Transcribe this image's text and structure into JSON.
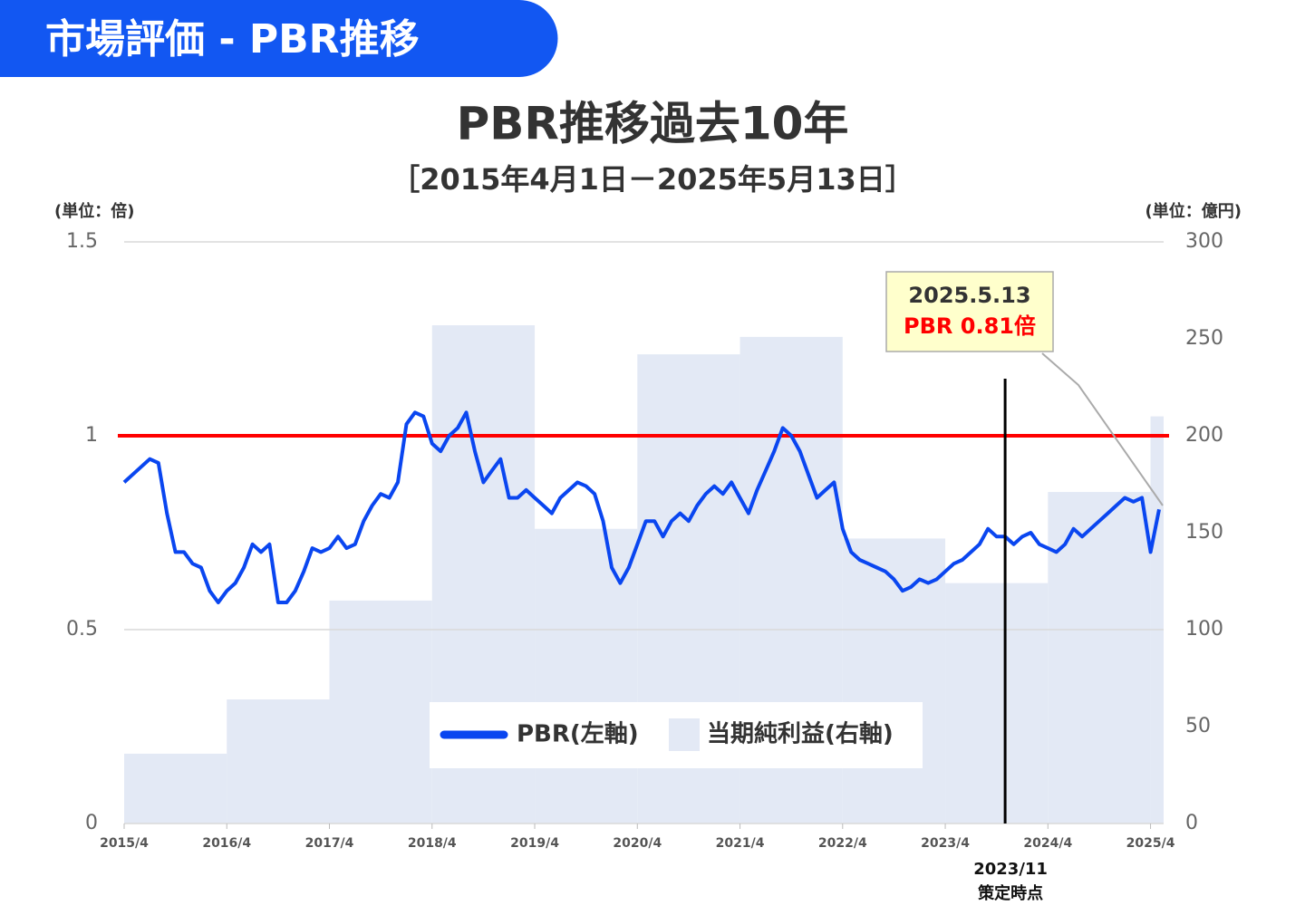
{
  "header": {
    "title": "市場評価 - PBR推移"
  },
  "chart_data": {
    "type": "line",
    "title": "PBR推移過去10年",
    "subtitle": "［2015年4月1日－2025年5月13日］",
    "y_label": "(単位：倍)",
    "y2_label": "(単位：億円)",
    "xlim": [
      "2015/4",
      "2025/5"
    ],
    "xticks": [
      "2015/4",
      "2016/4",
      "2017/4",
      "2018/4",
      "2019/4",
      "2020/4",
      "2021/4",
      "2022/4",
      "2023/4",
      "2024/4",
      "2025/4"
    ],
    "ylim": [
      0,
      1.5
    ],
    "yticks": [
      0,
      0.5,
      1,
      1.5
    ],
    "y2lim": [
      0,
      300
    ],
    "y2ticks": [
      0,
      50,
      100,
      150,
      200,
      250,
      300
    ],
    "grid": true,
    "x": [
      "2015/4",
      "2015/5",
      "2015/6",
      "2015/7",
      "2015/8",
      "2015/9",
      "2015/10",
      "2015/11",
      "2015/12",
      "2016/1",
      "2016/2",
      "2016/3",
      "2016/4",
      "2016/5",
      "2016/6",
      "2016/7",
      "2016/8",
      "2016/9",
      "2016/10",
      "2016/11",
      "2016/12",
      "2017/1",
      "2017/2",
      "2017/3",
      "2017/4",
      "2017/5",
      "2017/6",
      "2017/7",
      "2017/8",
      "2017/9",
      "2017/10",
      "2017/11",
      "2017/12",
      "2018/1",
      "2018/2",
      "2018/3",
      "2018/4",
      "2018/5",
      "2018/6",
      "2018/7",
      "2018/8",
      "2018/9",
      "2018/10",
      "2018/11",
      "2018/12",
      "2019/1",
      "2019/2",
      "2019/3",
      "2019/4",
      "2019/5",
      "2019/6",
      "2019/7",
      "2019/8",
      "2019/9",
      "2019/10",
      "2019/11",
      "2019/12",
      "2020/1",
      "2020/2",
      "2020/3",
      "2020/4",
      "2020/5",
      "2020/6",
      "2020/7",
      "2020/8",
      "2020/9",
      "2020/10",
      "2020/11",
      "2020/12",
      "2021/1",
      "2021/2",
      "2021/3",
      "2021/4",
      "2021/5",
      "2021/6",
      "2021/7",
      "2021/8",
      "2021/9",
      "2021/10",
      "2021/11",
      "2021/12",
      "2022/1",
      "2022/2",
      "2022/3",
      "2022/4",
      "2022/5",
      "2022/6",
      "2022/7",
      "2022/8",
      "2022/9",
      "2022/10",
      "2022/11",
      "2022/12",
      "2023/1",
      "2023/2",
      "2023/3",
      "2023/4",
      "2023/5",
      "2023/6",
      "2023/7",
      "2023/8",
      "2023/9",
      "2023/10",
      "2023/11",
      "2023/12",
      "2024/1",
      "2024/2",
      "2024/3",
      "2024/4",
      "2024/5",
      "2024/6",
      "2024/7",
      "2024/8",
      "2024/9",
      "2024/10",
      "2024/11",
      "2024/12",
      "2025/1",
      "2025/2",
      "2025/3",
      "2025/4",
      "2025/5"
    ],
    "series": [
      {
        "name": "PBR(左軸)",
        "color": "#0a46f0",
        "values": [
          0.88,
          0.9,
          0.92,
          0.94,
          0.93,
          0.8,
          0.7,
          0.7,
          0.67,
          0.66,
          0.6,
          0.57,
          0.6,
          0.62,
          0.66,
          0.72,
          0.7,
          0.72,
          0.57,
          0.57,
          0.6,
          0.65,
          0.71,
          0.7,
          0.71,
          0.74,
          0.71,
          0.72,
          0.78,
          0.82,
          0.85,
          0.84,
          0.88,
          1.03,
          1.06,
          1.05,
          0.98,
          0.96,
          1.0,
          1.02,
          1.06,
          0.96,
          0.88,
          0.91,
          0.94,
          0.84,
          0.84,
          0.86,
          0.84,
          0.82,
          0.8,
          0.84,
          0.86,
          0.88,
          0.87,
          0.85,
          0.78,
          0.66,
          0.62,
          0.66,
          0.72,
          0.78,
          0.78,
          0.74,
          0.78,
          0.8,
          0.78,
          0.82,
          0.85,
          0.87,
          0.85,
          0.88,
          0.84,
          0.8,
          0.86,
          0.91,
          0.96,
          1.02,
          1.0,
          0.96,
          0.9,
          0.84,
          0.86,
          0.88,
          0.76,
          0.7,
          0.68,
          0.67,
          0.66,
          0.65,
          0.63,
          0.6,
          0.61,
          0.63,
          0.62,
          0.63,
          0.65,
          0.67,
          0.68,
          0.7,
          0.72,
          0.76,
          0.74,
          0.74,
          0.72,
          0.74,
          0.75,
          0.72,
          0.71,
          0.7,
          0.72,
          0.76,
          0.74,
          0.76,
          0.78,
          0.8,
          0.82,
          0.84,
          0.83,
          0.84,
          0.7,
          0.81
        ]
      },
      {
        "name": "当期純利益(右軸)",
        "type": "bar",
        "axis": "y2",
        "color": "#e3e9f5",
        "x": [
          "2015/4",
          "2016/4",
          "2017/4",
          "2018/4",
          "2019/4",
          "2020/4",
          "2021/4",
          "2022/4",
          "2023/4",
          "2024/4",
          "2025/4"
        ],
        "values": [
          36,
          64,
          115,
          257,
          152,
          242,
          251,
          147,
          124,
          171,
          210
        ]
      }
    ],
    "reference_line": {
      "value": 1,
      "color": "#ff0000"
    },
    "marker": {
      "x": "2023/11",
      "label": "策定時点"
    },
    "annotation": {
      "date": "2025.5.13",
      "text": "PBR 0.81倍"
    }
  }
}
